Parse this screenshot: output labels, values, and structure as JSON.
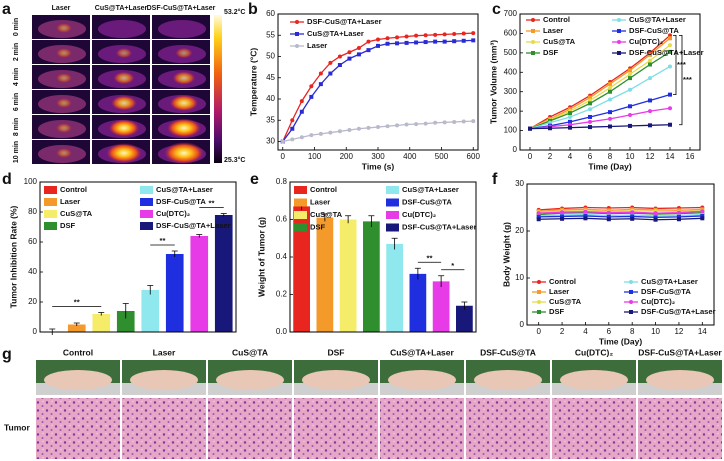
{
  "thermal": {
    "panel": "a",
    "columns": [
      "Laser",
      "CuS@TA+Laser",
      "DSF-CuS@TA+Laser"
    ],
    "rows": [
      "0 min",
      "2 min",
      "4 min",
      "6 min",
      "8 min",
      "10 min"
    ],
    "scale_max": "53.2°C",
    "scale_min": "25.3°C"
  },
  "chart_data": [
    {
      "panel": "b",
      "type": "line",
      "ylabel": "Temperature (°C)",
      "xlabel": "Time (s)",
      "x": [
        0,
        30,
        60,
        90,
        120,
        150,
        180,
        210,
        240,
        270,
        300,
        330,
        360,
        390,
        420,
        450,
        480,
        510,
        540,
        570,
        600
      ],
      "xlim": [
        -15,
        615
      ],
      "xticks": [
        0,
        100,
        200,
        300,
        400,
        500,
        600
      ],
      "ylim": [
        28,
        60
      ],
      "yticks": [
        30,
        35,
        40,
        45,
        50,
        55,
        60
      ],
      "series": [
        {
          "name": "DSF-CuS@TA+Laser",
          "color": "#e8251f",
          "values": [
            30,
            35,
            39.5,
            43,
            46,
            48.5,
            50,
            51,
            52,
            53.5,
            54,
            54.3,
            54.5,
            54.7,
            54.9,
            55,
            55.1,
            55.2,
            55.3,
            55.4,
            55.5
          ]
        },
        {
          "name": "CuS@TA+Laser",
          "color": "#2b2bd6",
          "values": [
            30,
            33,
            37,
            40.5,
            43.5,
            46,
            48,
            49.5,
            50.5,
            51.5,
            52.5,
            53,
            53.1,
            53.2,
            53.3,
            53.4,
            53.5,
            53.5,
            53.6,
            53.7,
            53.8
          ]
        },
        {
          "name": "Laser",
          "color": "#b9b9cc",
          "values": [
            30,
            30.5,
            31,
            31.5,
            31.8,
            32.1,
            32.4,
            32.7,
            33,
            33.2,
            33.4,
            33.6,
            33.8,
            34,
            34.1,
            34.2,
            34.4,
            34.5,
            34.6,
            34.7,
            34.8
          ]
        }
      ]
    },
    {
      "panel": "c",
      "type": "line",
      "ylabel": "Tumor Volume (mm³)",
      "xlabel": "Time (Day)",
      "x": [
        0,
        2,
        4,
        6,
        8,
        10,
        12,
        14
      ],
      "xlim": [
        -1,
        17
      ],
      "xticks": [
        0,
        2,
        4,
        6,
        8,
        10,
        12,
        14,
        16
      ],
      "ylim": [
        0,
        700
      ],
      "yticks": [
        0,
        100,
        200,
        300,
        400,
        500,
        600,
        700
      ],
      "annotations": [
        "***",
        "***"
      ],
      "series": [
        {
          "name": "Control",
          "color": "#e8251f",
          "values": [
            110,
            170,
            220,
            280,
            350,
            420,
            500,
            590
          ]
        },
        {
          "name": "Laser",
          "color": "#f39a2a",
          "values": [
            110,
            160,
            210,
            270,
            340,
            410,
            490,
            575
          ]
        },
        {
          "name": "CuS@TA",
          "color": "#e6dc4a",
          "values": [
            110,
            155,
            200,
            255,
            320,
            390,
            460,
            540
          ]
        },
        {
          "name": "DSF",
          "color": "#2f8f2f",
          "values": [
            110,
            150,
            190,
            240,
            300,
            370,
            440,
            505
          ]
        },
        {
          "name": "CuS@TA+Laser",
          "color": "#7fdde6",
          "values": [
            110,
            140,
            170,
            210,
            260,
            310,
            370,
            430
          ]
        },
        {
          "name": "DSF-CuS@TA",
          "color": "#1f2fe0",
          "values": [
            110,
            125,
            145,
            170,
            195,
            225,
            255,
            285
          ]
        },
        {
          "name": "Cu(DTC)₂",
          "color": "#e83be8",
          "values": [
            110,
            120,
            130,
            145,
            160,
            180,
            200,
            215
          ]
        },
        {
          "name": "DSF-CuS@TA+Laser",
          "color": "#18187a",
          "values": [
            110,
            112,
            115,
            118,
            121,
            124,
            127,
            130
          ]
        }
      ]
    },
    {
      "panel": "d",
      "type": "bar",
      "ylabel": "Tumor Inhibition Rate (%)",
      "categories": [
        "Control",
        "Laser",
        "CuS@TA",
        "DSF",
        "CuS@TA+Laser",
        "DSF-CuS@TA",
        "Cu(DTC)₂",
        "DSF-CuS@TA+Laser"
      ],
      "colors": [
        "#e8251f",
        "#f39a2a",
        "#f5ec6a",
        "#2f8f2f",
        "#8fe8ee",
        "#1f2fe0",
        "#e83be8",
        "#18187a"
      ],
      "values": [
        0,
        5,
        12,
        14,
        28,
        52,
        64,
        78
      ],
      "errors": [
        2,
        1,
        1,
        5,
        3,
        2,
        1,
        1
      ],
      "ylim": [
        0,
        100
      ],
      "yticks": [
        0,
        20,
        40,
        60,
        80,
        100
      ],
      "annotations": [
        "**",
        "**",
        "**"
      ]
    },
    {
      "panel": "e",
      "type": "bar",
      "ylabel": "Weight of Tumor (g)",
      "categories": [
        "Control",
        "Laser",
        "CuS@TA",
        "DSF",
        "CuS@TA+Laser",
        "DSF-CuS@TA",
        "Cu(DTC)₂",
        "DSF-CuS@TA+Laser"
      ],
      "colors": [
        "#e8251f",
        "#f39a2a",
        "#f5ec6a",
        "#2f8f2f",
        "#8fe8ee",
        "#1f2fe0",
        "#e83be8",
        "#18187a"
      ],
      "values": [
        0.67,
        0.61,
        0.6,
        0.59,
        0.47,
        0.31,
        0.27,
        0.14
      ],
      "errors": [
        0.02,
        0.02,
        0.02,
        0.03,
        0.03,
        0.03,
        0.03,
        0.02
      ],
      "ylim": [
        0,
        0.8
      ],
      "yticks": [
        {
          "value": 0,
          "label": "0.0"
        },
        0.2,
        0.4,
        0.6,
        0.8
      ],
      "annotations": [
        "**",
        "*"
      ]
    },
    {
      "panel": "f",
      "type": "line",
      "ylabel": "Body Weight (g)",
      "xlabel": "Time (Day)",
      "x": [
        0,
        2,
        4,
        6,
        8,
        10,
        12,
        14
      ],
      "xlim": [
        -1,
        15
      ],
      "xticks": [
        0,
        2,
        4,
        6,
        8,
        10,
        12,
        14
      ],
      "ylim": [
        0,
        30
      ],
      "yticks": [
        0,
        10,
        20,
        30
      ],
      "series": [
        {
          "name": "Control",
          "color": "#e8251f",
          "values": [
            24.5,
            24.8,
            25,
            24.9,
            25,
            24.8,
            24.9,
            25
          ]
        },
        {
          "name": "Laser",
          "color": "#f39a2a",
          "values": [
            24.2,
            24.5,
            24.6,
            24.4,
            24.6,
            24.5,
            24.4,
            24.6
          ]
        },
        {
          "name": "CuS@TA",
          "color": "#e6dc4a",
          "values": [
            24,
            24.2,
            24.3,
            24.1,
            24.3,
            24.2,
            24.1,
            24.3
          ]
        },
        {
          "name": "DSF",
          "color": "#2f8f2f",
          "values": [
            23.5,
            23.8,
            23.9,
            23.7,
            23.8,
            23.6,
            23.7,
            23.9
          ]
        },
        {
          "name": "CuS@TA+Laser",
          "color": "#7fdde6",
          "values": [
            23.2,
            23.4,
            23.5,
            23.3,
            23.4,
            23.2,
            23.3,
            23.5
          ]
        },
        {
          "name": "DSF-CuS@TA",
          "color": "#1f2fe0",
          "values": [
            23,
            23.1,
            23.2,
            23,
            23.1,
            22.9,
            23,
            23.2
          ]
        },
        {
          "name": "Cu(DTC)₂",
          "color": "#e83be8",
          "values": [
            23.8,
            24,
            24.1,
            23.9,
            24,
            23.8,
            23.9,
            24.2
          ]
        },
        {
          "name": "DSF-CuS@TA+Laser",
          "color": "#18187a",
          "values": [
            22.5,
            22.6,
            22.7,
            22.5,
            22.6,
            22.4,
            22.5,
            22.7
          ]
        }
      ]
    }
  ],
  "photos": {
    "panel": "g",
    "groups": [
      "Control",
      "Laser",
      "CuS@TA",
      "DSF",
      "CuS@TA+Laser",
      "DSF-CuS@TA",
      "Cu(DTC)₂",
      "DSF-CuS@TA+Laser"
    ],
    "row_label": "Tumor"
  }
}
